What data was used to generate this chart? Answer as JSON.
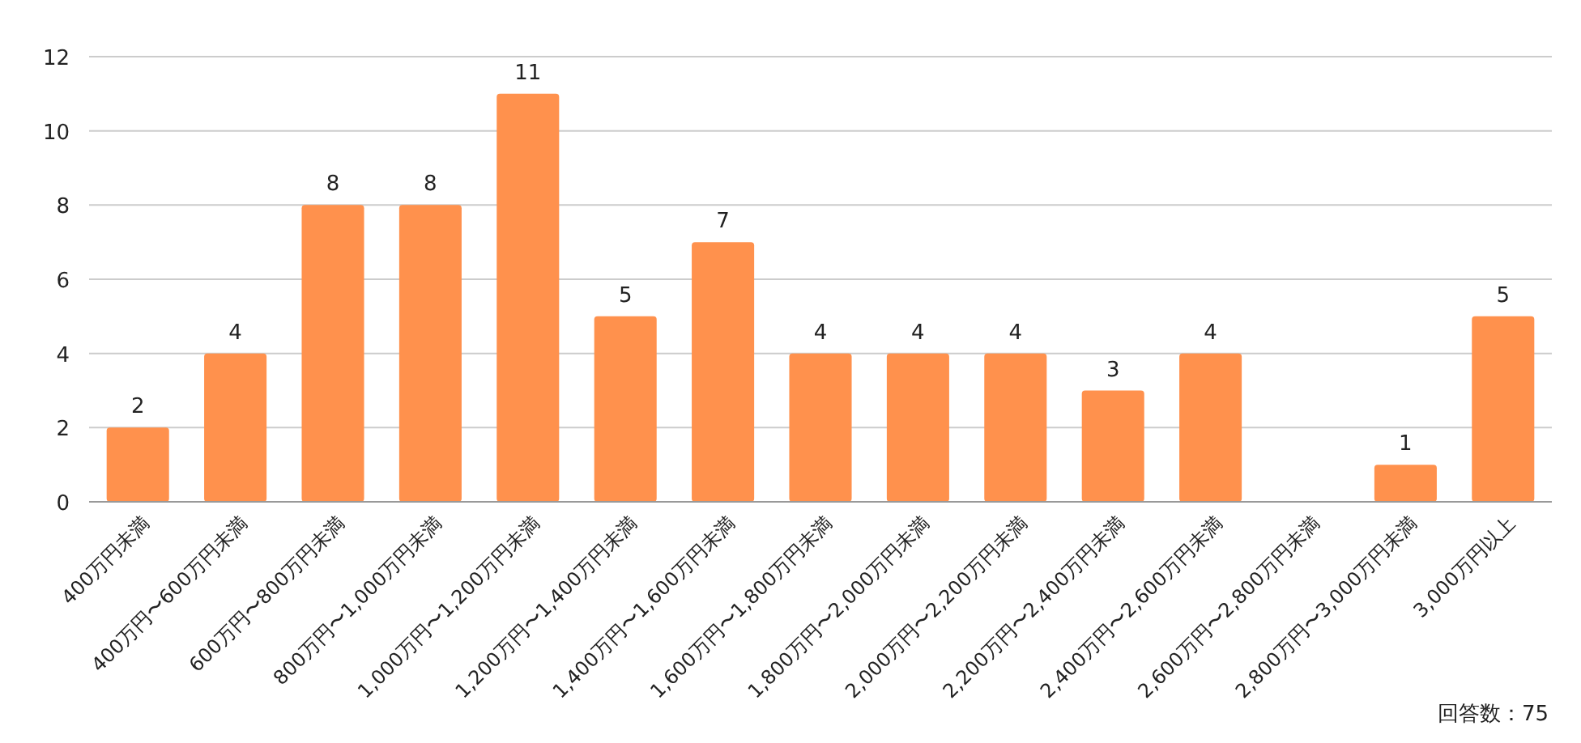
{
  "chart_data": {
    "type": "bar",
    "categories": [
      "400万円未満",
      "400万円〜600万円未満",
      "600万円〜800万円未満",
      "800万円〜1,000万円未満",
      "1,000万円〜1,200万円未満",
      "1,200万円〜1,400万円未満",
      "1,400万円〜1,600万円未満",
      "1,600万円〜1,800万円未満",
      "1,800万円〜2,000万円未満",
      "2,000万円〜2,200万円未満",
      "2,200万円〜2,400万円未満",
      "2,400万円〜2,600万円未満",
      "2,600万円〜2,800万円未満",
      "2,800万円〜3,000万円未満",
      "3,000万円以上"
    ],
    "values": [
      2,
      4,
      8,
      8,
      11,
      5,
      7,
      4,
      4,
      4,
      3,
      4,
      0,
      1,
      5
    ],
    "value_labels": [
      "2",
      "4",
      "8",
      "8",
      "11",
      "5",
      "7",
      "4",
      "4",
      "4",
      "3",
      "4",
      null,
      "1",
      "5"
    ],
    "color": "#ff914d",
    "ylim": [
      0,
      12
    ],
    "yticks": [
      0,
      2,
      4,
      6,
      8,
      10,
      12
    ],
    "grid": "y",
    "annotations": [
      "回答数：75"
    ]
  }
}
